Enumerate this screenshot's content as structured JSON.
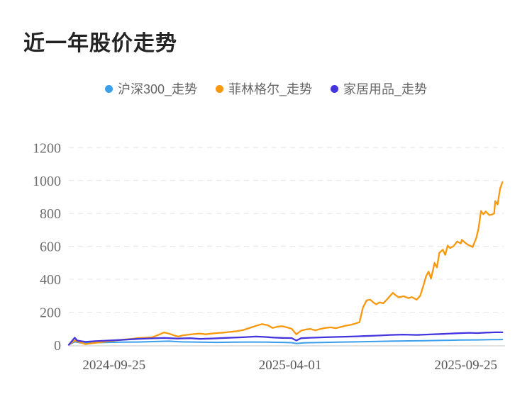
{
  "chart_data": {
    "type": "line",
    "title": "近一年股价走势",
    "legend": {
      "position": "top-center",
      "items": [
        "沪深300_走势",
        "菲林格尔_走势",
        "家居用品_走势"
      ]
    },
    "x_axis": {
      "unit": "days since 2024-09-25",
      "range_days": [
        0,
        365
      ],
      "ticks": [
        {
          "label": "2024-09-25",
          "pos": 0.104
        },
        {
          "label": "2025-04-01",
          "pos": 0.509
        },
        {
          "label": "2025-09-25",
          "pos": 0.913
        }
      ]
    },
    "y_axis": {
      "min": 0,
      "max": 1200,
      "tick_step": 200,
      "ticks": [
        0,
        200,
        400,
        600,
        800,
        1000,
        1200
      ]
    },
    "grid": {
      "horizontal_dashed": true,
      "color": "#e5e5e5",
      "axis_line_color": "#d9d9d9"
    },
    "series": [
      {
        "name": "沪深300_走势",
        "color": "#3C9FEC",
        "points_day_value": [
          [
            0,
            2
          ],
          [
            5,
            20
          ],
          [
            11,
            12
          ],
          [
            22,
            15
          ],
          [
            33,
            17
          ],
          [
            44,
            18
          ],
          [
            58,
            19
          ],
          [
            73,
            22
          ],
          [
            84,
            24
          ],
          [
            95,
            20
          ],
          [
            110,
            18
          ],
          [
            124,
            17
          ],
          [
            139,
            18
          ],
          [
            153,
            19
          ],
          [
            168,
            18
          ],
          [
            179,
            17
          ],
          [
            187,
            15
          ],
          [
            191,
            10
          ],
          [
            197,
            14
          ],
          [
            212,
            16
          ],
          [
            226,
            18
          ],
          [
            241,
            20
          ],
          [
            256,
            22
          ],
          [
            270,
            24
          ],
          [
            285,
            26
          ],
          [
            299,
            27
          ],
          [
            314,
            29
          ],
          [
            329,
            31
          ],
          [
            343,
            32
          ],
          [
            354,
            33
          ],
          [
            364,
            34
          ]
        ]
      },
      {
        "name": "菲林格尔_走势",
        "color": "#F8980D",
        "points_day_value": [
          [
            0,
            2
          ],
          [
            5,
            28
          ],
          [
            9,
            18
          ],
          [
            14,
            6
          ],
          [
            20,
            12
          ],
          [
            26,
            17
          ],
          [
            31,
            22
          ],
          [
            38,
            27
          ],
          [
            45,
            33
          ],
          [
            53,
            38
          ],
          [
            58,
            43
          ],
          [
            64,
            45
          ],
          [
            70,
            48
          ],
          [
            76,
            65
          ],
          [
            80,
            77
          ],
          [
            84,
            70
          ],
          [
            88,
            60
          ],
          [
            92,
            52
          ],
          [
            96,
            60
          ],
          [
            101,
            64
          ],
          [
            105,
            67
          ],
          [
            110,
            70
          ],
          [
            115,
            66
          ],
          [
            120,
            70
          ],
          [
            124,
            73
          ],
          [
            130,
            76
          ],
          [
            135,
            80
          ],
          [
            141,
            85
          ],
          [
            146,
            91
          ],
          [
            152,
            105
          ],
          [
            157,
            117
          ],
          [
            162,
            128
          ],
          [
            167,
            121
          ],
          [
            171,
            104
          ],
          [
            175,
            112
          ],
          [
            179,
            115
          ],
          [
            183,
            108
          ],
          [
            187,
            100
          ],
          [
            191,
            66
          ],
          [
            195,
            88
          ],
          [
            199,
            95
          ],
          [
            203,
            98
          ],
          [
            207,
            90
          ],
          [
            211,
            98
          ],
          [
            215,
            104
          ],
          [
            220,
            108
          ],
          [
            224,
            103
          ],
          [
            228,
            110
          ],
          [
            232,
            117
          ],
          [
            237,
            124
          ],
          [
            241,
            132
          ],
          [
            244,
            140
          ],
          [
            247,
            230
          ],
          [
            250,
            272
          ],
          [
            253,
            276
          ],
          [
            256,
            258
          ],
          [
            258,
            248
          ],
          [
            261,
            260
          ],
          [
            264,
            254
          ],
          [
            268,
            285
          ],
          [
            272,
            318
          ],
          [
            274,
            305
          ],
          [
            277,
            290
          ],
          [
            281,
            297
          ],
          [
            285,
            286
          ],
          [
            288,
            292
          ],
          [
            292,
            276
          ],
          [
            295,
            300
          ],
          [
            298,
            370
          ],
          [
            300,
            420
          ],
          [
            302,
            447
          ],
          [
            304,
            405
          ],
          [
            306,
            465
          ],
          [
            307,
            500
          ],
          [
            309,
            472
          ],
          [
            311,
            560
          ],
          [
            314,
            580
          ],
          [
            316,
            548
          ],
          [
            318,
            605
          ],
          [
            320,
            590
          ],
          [
            323,
            602
          ],
          [
            326,
            630
          ],
          [
            329,
            618
          ],
          [
            330,
            640
          ],
          [
            333,
            620
          ],
          [
            335,
            610
          ],
          [
            338,
            600
          ],
          [
            339,
            596
          ],
          [
            342,
            650
          ],
          [
            344,
            710
          ],
          [
            345,
            765
          ],
          [
            346,
            815
          ],
          [
            348,
            795
          ],
          [
            350,
            812
          ],
          [
            353,
            790
          ],
          [
            355,
            793
          ],
          [
            357,
            800
          ],
          [
            358,
            875
          ],
          [
            360,
            855
          ],
          [
            361,
            905
          ],
          [
            362,
            950
          ],
          [
            364,
            990
          ]
        ]
      },
      {
        "name": "家居用品_走势",
        "color": "#4434E0",
        "points_day_value": [
          [
            0,
            2
          ],
          [
            5,
            45
          ],
          [
            7,
            28
          ],
          [
            14,
            20
          ],
          [
            22,
            24
          ],
          [
            33,
            28
          ],
          [
            44,
            32
          ],
          [
            58,
            38
          ],
          [
            69,
            41
          ],
          [
            80,
            44
          ],
          [
            91,
            40
          ],
          [
            102,
            42
          ],
          [
            110,
            38
          ],
          [
            120,
            40
          ],
          [
            131,
            44
          ],
          [
            146,
            48
          ],
          [
            157,
            52
          ],
          [
            164,
            50
          ],
          [
            172,
            46
          ],
          [
            179,
            44
          ],
          [
            187,
            43
          ],
          [
            191,
            28
          ],
          [
            195,
            42
          ],
          [
            204,
            45
          ],
          [
            215,
            48
          ],
          [
            226,
            50
          ],
          [
            237,
            52
          ],
          [
            248,
            55
          ],
          [
            259,
            58
          ],
          [
            270,
            62
          ],
          [
            281,
            64
          ],
          [
            292,
            62
          ],
          [
            303,
            65
          ],
          [
            314,
            68
          ],
          [
            325,
            72
          ],
          [
            336,
            75
          ],
          [
            343,
            73
          ],
          [
            350,
            76
          ],
          [
            358,
            78
          ],
          [
            364,
            78
          ]
        ]
      }
    ],
    "text_colors": {
      "title": "#232323",
      "legend": "#666666",
      "y_tick": "#6e6e6e",
      "x_tick": "#575757"
    }
  }
}
